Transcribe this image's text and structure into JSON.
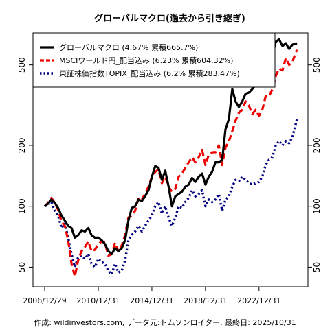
{
  "chart_data": {
    "type": "line",
    "title": "グローバルマクロ(過去から引き継ぎ)",
    "y_scale": "log",
    "ylim": [
      40,
      720
    ],
    "y_ticks": [
      50,
      100,
      200,
      500
    ],
    "y_tick_labels": [
      "50",
      "100",
      "200",
      "500"
    ],
    "x_ticks": [
      "2006/12/29",
      "2010/12/31",
      "2014/12/31",
      "2018/12/31",
      "2022/12/31"
    ],
    "legend_position": "top-left",
    "series": [
      {
        "name": "グローバルマクロ (4.67% 累積665.7%)",
        "color": "#000000",
        "style": "solid",
        "points": [
          [
            "2006-12-29",
            100
          ],
          [
            "2007-03-31",
            103
          ],
          [
            "2007-06-30",
            108
          ],
          [
            "2007-09-30",
            104
          ],
          [
            "2007-12-31",
            98
          ],
          [
            "2008-03-31",
            90
          ],
          [
            "2008-06-30",
            85
          ],
          [
            "2008-09-30",
            80
          ],
          [
            "2008-12-31",
            78
          ],
          [
            "2009-03-31",
            70
          ],
          [
            "2009-06-30",
            72
          ],
          [
            "2009-09-30",
            76
          ],
          [
            "2009-12-31",
            75
          ],
          [
            "2010-03-31",
            78
          ],
          [
            "2010-06-30",
            72
          ],
          [
            "2010-09-30",
            70
          ],
          [
            "2010-12-31",
            70
          ],
          [
            "2011-03-31",
            68
          ],
          [
            "2011-06-30",
            65
          ],
          [
            "2011-09-30",
            60
          ],
          [
            "2011-12-31",
            58
          ],
          [
            "2012-03-31",
            62
          ],
          [
            "2012-06-30",
            60
          ],
          [
            "2012-09-30",
            62
          ],
          [
            "2012-12-31",
            68
          ],
          [
            "2013-03-31",
            85
          ],
          [
            "2013-06-30",
            98
          ],
          [
            "2013-09-30",
            100
          ],
          [
            "2013-12-31",
            108
          ],
          [
            "2014-03-31",
            106
          ],
          [
            "2014-06-30",
            112
          ],
          [
            "2014-09-30",
            120
          ],
          [
            "2014-12-31",
            140
          ],
          [
            "2015-03-31",
            158
          ],
          [
            "2015-06-30",
            155
          ],
          [
            "2015-09-30",
            135
          ],
          [
            "2015-12-31",
            150
          ],
          [
            "2016-03-31",
            125
          ],
          [
            "2016-06-30",
            100
          ],
          [
            "2016-09-30",
            112
          ],
          [
            "2016-12-31",
            115
          ],
          [
            "2017-03-31",
            118
          ],
          [
            "2017-06-30",
            125
          ],
          [
            "2017-09-30",
            128
          ],
          [
            "2017-12-31",
            138
          ],
          [
            "2018-03-31",
            132
          ],
          [
            "2018-06-30",
            140
          ],
          [
            "2018-09-30",
            145
          ],
          [
            "2018-12-31",
            128
          ],
          [
            "2019-03-31",
            140
          ],
          [
            "2019-06-30",
            148
          ],
          [
            "2019-09-30",
            165
          ],
          [
            "2019-12-31",
            165
          ],
          [
            "2020-03-31",
            170
          ],
          [
            "2020-06-30",
            240
          ],
          [
            "2020-09-30",
            270
          ],
          [
            "2020-12-31",
            380
          ],
          [
            "2021-03-31",
            330
          ],
          [
            "2021-06-30",
            310
          ],
          [
            "2021-09-30",
            330
          ],
          [
            "2021-12-31",
            360
          ],
          [
            "2022-03-31",
            365
          ],
          [
            "2022-06-30",
            380
          ],
          [
            "2022-09-30",
            400
          ],
          [
            "2022-12-31",
            400
          ],
          [
            "2023-03-31",
            440
          ],
          [
            "2023-06-30",
            460
          ],
          [
            "2023-09-30",
            480
          ],
          [
            "2023-12-31",
            560
          ],
          [
            "2024-03-31",
            650
          ],
          [
            "2024-06-30",
            670
          ],
          [
            "2024-09-30",
            620
          ],
          [
            "2024-12-31",
            640
          ],
          [
            "2025-03-31",
            600
          ],
          [
            "2025-06-30",
            630
          ],
          [
            "2025-10-31",
            640
          ]
        ]
      },
      {
        "name": "MSCIワールド円_配当込み (6.23% 累積604.32%)",
        "color": "#ee0000",
        "style": "dashed",
        "points": [
          [
            "2006-12-29",
            100
          ],
          [
            "2007-03-31",
            104
          ],
          [
            "2007-06-30",
            110
          ],
          [
            "2007-09-30",
            104
          ],
          [
            "2007-12-31",
            96
          ],
          [
            "2008-03-31",
            84
          ],
          [
            "2008-06-30",
            80
          ],
          [
            "2008-09-30",
            68
          ],
          [
            "2008-12-31",
            52
          ],
          [
            "2009-03-31",
            45
          ],
          [
            "2009-06-30",
            54
          ],
          [
            "2009-09-30",
            60
          ],
          [
            "2009-12-31",
            63
          ],
          [
            "2010-03-31",
            67
          ],
          [
            "2010-06-30",
            60
          ],
          [
            "2010-09-30",
            61
          ],
          [
            "2010-12-31",
            65
          ],
          [
            "2011-03-31",
            67
          ],
          [
            "2011-06-30",
            66
          ],
          [
            "2011-09-30",
            57
          ],
          [
            "2011-12-31",
            58
          ],
          [
            "2012-03-31",
            66
          ],
          [
            "2012-06-30",
            60
          ],
          [
            "2012-09-30",
            64
          ],
          [
            "2012-12-31",
            72
          ],
          [
            "2013-03-31",
            88
          ],
          [
            "2013-06-30",
            90
          ],
          [
            "2013-09-30",
            95
          ],
          [
            "2013-12-31",
            110
          ],
          [
            "2014-03-31",
            108
          ],
          [
            "2014-06-30",
            115
          ],
          [
            "2014-09-30",
            125
          ],
          [
            "2014-12-31",
            140
          ],
          [
            "2015-03-31",
            148
          ],
          [
            "2015-06-30",
            152
          ],
          [
            "2015-09-30",
            130
          ],
          [
            "2015-12-31",
            140
          ],
          [
            "2016-03-31",
            125
          ],
          [
            "2016-06-30",
            118
          ],
          [
            "2016-09-30",
            122
          ],
          [
            "2016-12-31",
            140
          ],
          [
            "2017-03-31",
            145
          ],
          [
            "2017-06-30",
            155
          ],
          [
            "2017-09-30",
            165
          ],
          [
            "2017-12-31",
            175
          ],
          [
            "2018-03-31",
            165
          ],
          [
            "2018-06-30",
            175
          ],
          [
            "2018-09-30",
            190
          ],
          [
            "2018-12-31",
            160
          ],
          [
            "2019-03-31",
            180
          ],
          [
            "2019-06-30",
            185
          ],
          [
            "2019-09-30",
            185
          ],
          [
            "2019-12-31",
            200
          ],
          [
            "2020-03-31",
            160
          ],
          [
            "2020-06-30",
            195
          ],
          [
            "2020-09-30",
            210
          ],
          [
            "2020-12-31",
            235
          ],
          [
            "2021-03-31",
            265
          ],
          [
            "2021-06-30",
            290
          ],
          [
            "2021-09-30",
            300
          ],
          [
            "2021-12-31",
            330
          ],
          [
            "2022-03-31",
            315
          ],
          [
            "2022-06-30",
            285
          ],
          [
            "2022-09-30",
            300
          ],
          [
            "2022-12-31",
            280
          ],
          [
            "2023-03-31",
            300
          ],
          [
            "2023-06-30",
            350
          ],
          [
            "2023-09-30",
            350
          ],
          [
            "2023-12-31",
            380
          ],
          [
            "2024-03-31",
            440
          ],
          [
            "2024-06-30",
            480
          ],
          [
            "2024-09-30",
            470
          ],
          [
            "2024-12-31",
            540
          ],
          [
            "2025-03-31",
            500
          ],
          [
            "2025-06-30",
            520
          ],
          [
            "2025-10-31",
            595
          ]
        ]
      },
      {
        "name": "東証株価指数TOPIX_配当込み (6.2% 累積283.47%)",
        "color": "#000080",
        "style": "dotted",
        "points": [
          [
            "2006-12-29",
            100
          ],
          [
            "2007-03-31",
            102
          ],
          [
            "2007-06-30",
            105
          ],
          [
            "2007-09-30",
            95
          ],
          [
            "2007-12-31",
            90
          ],
          [
            "2008-03-31",
            78
          ],
          [
            "2008-06-30",
            82
          ],
          [
            "2008-09-30",
            70
          ],
          [
            "2008-12-31",
            58
          ],
          [
            "2009-03-31",
            50
          ],
          [
            "2009-06-30",
            56
          ],
          [
            "2009-09-30",
            57
          ],
          [
            "2009-12-31",
            55
          ],
          [
            "2010-03-31",
            58
          ],
          [
            "2010-06-30",
            52
          ],
          [
            "2010-09-30",
            50
          ],
          [
            "2010-12-31",
            55
          ],
          [
            "2011-03-31",
            53
          ],
          [
            "2011-06-30",
            52
          ],
          [
            "2011-09-30",
            48
          ],
          [
            "2011-12-31",
            46
          ],
          [
            "2012-03-31",
            52
          ],
          [
            "2012-06-30",
            47
          ],
          [
            "2012-09-30",
            48
          ],
          [
            "2012-12-31",
            54
          ],
          [
            "2013-03-31",
            68
          ],
          [
            "2013-06-30",
            72
          ],
          [
            "2013-09-30",
            75
          ],
          [
            "2013-12-31",
            80
          ],
          [
            "2014-03-31",
            75
          ],
          [
            "2014-06-30",
            80
          ],
          [
            "2014-09-30",
            85
          ],
          [
            "2014-12-31",
            90
          ],
          [
            "2015-03-31",
            100
          ],
          [
            "2015-06-30",
            105
          ],
          [
            "2015-09-30",
            92
          ],
          [
            "2015-12-31",
            100
          ],
          [
            "2016-03-31",
            88
          ],
          [
            "2016-06-30",
            80
          ],
          [
            "2016-09-30",
            88
          ],
          [
            "2016-12-31",
            100
          ],
          [
            "2017-03-31",
            98
          ],
          [
            "2017-06-30",
            105
          ],
          [
            "2017-09-30",
            110
          ],
          [
            "2017-12-31",
            120
          ],
          [
            "2018-03-31",
            112
          ],
          [
            "2018-06-30",
            115
          ],
          [
            "2018-09-30",
            120
          ],
          [
            "2018-12-31",
            100
          ],
          [
            "2019-03-31",
            108
          ],
          [
            "2019-06-30",
            105
          ],
          [
            "2019-09-30",
            108
          ],
          [
            "2019-12-31",
            115
          ],
          [
            "2020-03-31",
            95
          ],
          [
            "2020-06-30",
            108
          ],
          [
            "2020-09-30",
            112
          ],
          [
            "2020-12-31",
            125
          ],
          [
            "2021-03-31",
            135
          ],
          [
            "2021-06-30",
            133
          ],
          [
            "2021-09-30",
            140
          ],
          [
            "2021-12-31",
            135
          ],
          [
            "2022-03-31",
            130
          ],
          [
            "2022-06-30",
            128
          ],
          [
            "2022-09-30",
            130
          ],
          [
            "2022-12-31",
            132
          ],
          [
            "2023-03-31",
            140
          ],
          [
            "2023-06-30",
            160
          ],
          [
            "2023-09-30",
            170
          ],
          [
            "2023-12-31",
            175
          ],
          [
            "2024-03-31",
            200
          ],
          [
            "2024-06-30",
            210
          ],
          [
            "2024-09-30",
            200
          ],
          [
            "2024-12-31",
            210
          ],
          [
            "2025-03-31",
            205
          ],
          [
            "2025-06-30",
            220
          ],
          [
            "2025-10-31",
            270
          ]
        ]
      }
    ]
  },
  "footer": "作成: wildinvestors.com, データ元:トムソンロイター, 最終日: 2025/10/31"
}
